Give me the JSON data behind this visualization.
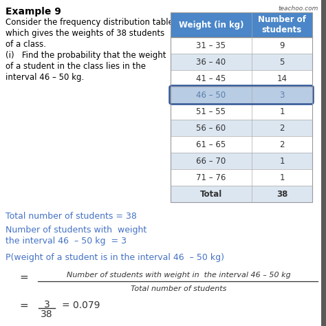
{
  "title": "Example 9",
  "watermark": "teachoo.com",
  "description_lines": [
    "Consider the frequency distribution table",
    "which gives the weights of 38 students",
    "of a class.",
    "(i)   Find the probability that the weight",
    "of a student in the class lies in the",
    "interval 46 – 50 kg."
  ],
  "table_header": [
    "Weight (in kg)",
    "Number of\nstudents"
  ],
  "table_rows": [
    [
      "31 – 35",
      "9"
    ],
    [
      "36 – 40",
      "5"
    ],
    [
      "41 – 45",
      "14"
    ],
    [
      "46 – 50",
      "3"
    ],
    [
      "51 – 55",
      "1"
    ],
    [
      "56 – 60",
      "2"
    ],
    [
      "61 – 65",
      "2"
    ],
    [
      "66 – 70",
      "1"
    ],
    [
      "71 – 76",
      "1"
    ],
    [
      "Total",
      "38"
    ]
  ],
  "highlight_row": 3,
  "solution_line1": "Total number of students = 38",
  "solution_line2": "Number of students with  weight",
  "solution_line3": "the interval 46  – 50 kg  = 3",
  "prob_statement": "P(weight of a student is in the interval 46  – 50 kg)",
  "fraction_numerator": "Number of students with weight in  the interval 46 – 50 kg",
  "fraction_denominator": "Total number of students",
  "header_bg": "#4a86c8",
  "header_text": "#ffffff",
  "row_bg_light": "#dce6f1",
  "row_bg_white": "#ffffff",
  "highlight_bg": "#b8cce4",
  "highlight_border": "#2f5496",
  "solution_color": "#4472c4",
  "prob_color": "#4472c4",
  "title_color": "#000000",
  "bg_color": "#ffffff",
  "total_row_bg": "#dce6f1",
  "dark_bar_color": "#595959"
}
